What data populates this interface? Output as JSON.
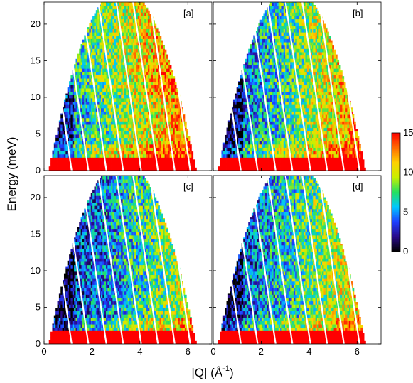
{
  "chart_data": {
    "type": "heatmap",
    "xlabel": "|Q| (Å",
    "xlabel_sup": "-1",
    "xlabel_close": ")",
    "ylabel": "Energy (meV)",
    "xlim": [
      0,
      7
    ],
    "ylim": [
      0,
      23
    ],
    "xticks": [
      "0",
      "2",
      "4",
      "6"
    ],
    "yticks": [
      "0",
      "5",
      "10",
      "15",
      "20"
    ],
    "grid": false,
    "colorbar": {
      "range": [
        0,
        15
      ],
      "ticks": [
        "0",
        "5",
        "10",
        "15"
      ],
      "colors": [
        "#000000",
        "#2a0a8a",
        "#1f3fff",
        "#00c8ff",
        "#24e060",
        "#c8f000",
        "#ffd000",
        "#ff6a00",
        "#ff0000"
      ]
    },
    "panels": [
      {
        "label": "[a]"
      },
      {
        "label": "[b]"
      },
      {
        "label": "[c]"
      },
      {
        "label": "[d]"
      }
    ]
  }
}
